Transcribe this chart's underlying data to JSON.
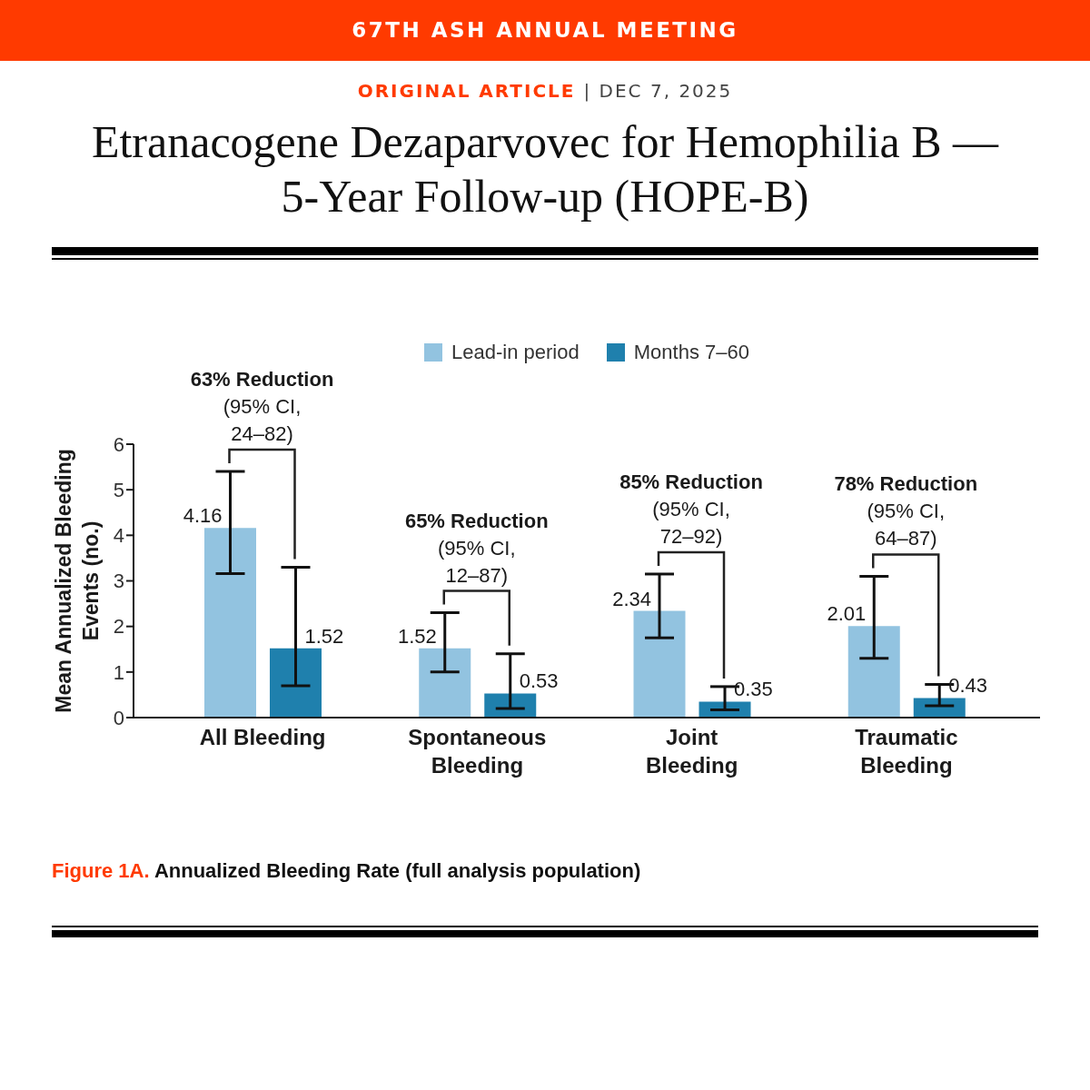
{
  "chart_data": {
    "type": "bar",
    "title": "Etranacogene Dezaparvovec for Hemophilia B — 5-Year Follow-up (HOPE-B)",
    "subtitle": "ORIGINAL ARTICLE | DEC 7, 2025",
    "ylabel": "Mean Annualized Bleeding\nEvents (no.)",
    "annotations": [
      "67TH ASH ANNUAL MEETING",
      "63% Reduction\n(95% CI,\n24–82)",
      "65% Reduction\n(95% CI,\n12–87)",
      "85% Reduction\n(95% CI,\n72–92)",
      "78% Reduction\n(95% CI,\n64–87)",
      "Figure 1A. Annualized Bleeding Rate (full analysis population)"
    ],
    "categories": [
      "All Bleeding",
      "Spontaneous\nBleeding",
      "Joint\nBleeding",
      "Traumatic\nBleeding"
    ],
    "series": [
      {
        "name": "Lead-in period",
        "color": "#92c3e0",
        "values": [
          4.16,
          1.52,
          2.34,
          2.01
        ],
        "errors": [
          [
            3.16,
            5.4
          ],
          [
            1.0,
            2.3
          ],
          [
            1.75,
            3.15
          ],
          [
            1.3,
            3.1
          ]
        ]
      },
      {
        "name": "Months 7–60",
        "color": "#1f80ad",
        "values": [
          1.52,
          0.53,
          0.35,
          0.43
        ],
        "errors": [
          [
            0.7,
            3.3
          ],
          [
            0.2,
            1.4
          ],
          [
            0.17,
            0.68
          ],
          [
            0.26,
            0.73
          ]
        ]
      }
    ],
    "ylim": [
      0,
      6
    ],
    "yticks": [
      0,
      1,
      2,
      3,
      4,
      5,
      6
    ],
    "legend": "top",
    "data_labels": true
  }
}
